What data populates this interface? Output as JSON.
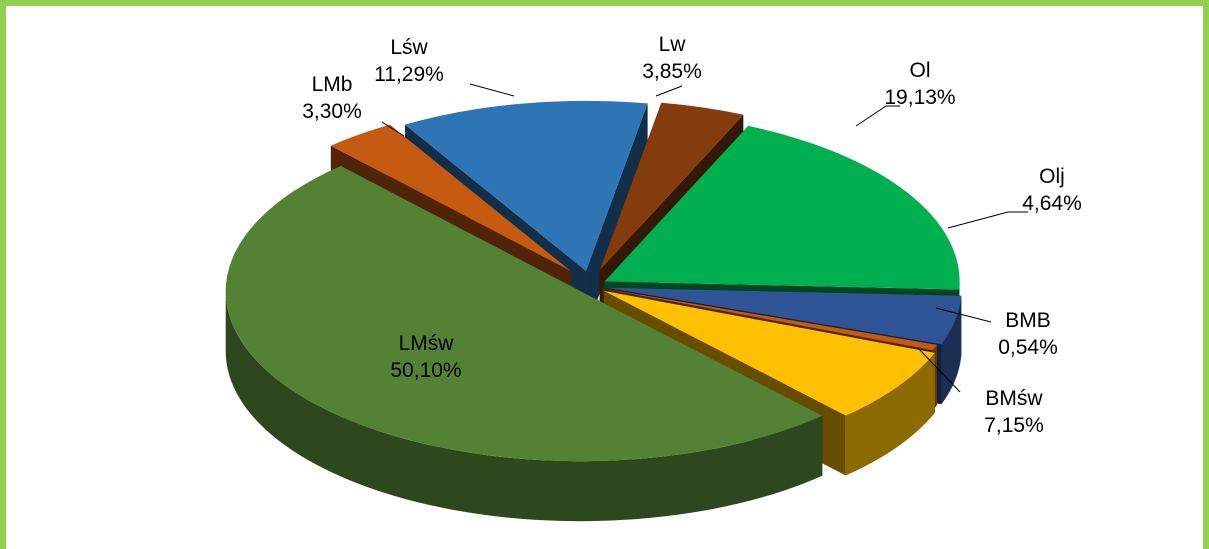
{
  "chart_data": {
    "type": "pie",
    "style": "3d-exploded",
    "title": "",
    "legend": "none",
    "slices": [
      {
        "name": "Lw",
        "label": "Lw",
        "percent_label": "3,85%",
        "value": 3.85,
        "color": "#843c0c"
      },
      {
        "name": "Ol",
        "label": "Ol",
        "percent_label": "19,13%",
        "value": 19.13,
        "color": "#00b050"
      },
      {
        "name": "Olj",
        "label": "Olj",
        "percent_label": "4,64%",
        "value": 4.64,
        "color": "#2f5597"
      },
      {
        "name": "BMB",
        "label": "BMB",
        "percent_label": "0,54%",
        "value": 0.54,
        "color": "#c55a11"
      },
      {
        "name": "BMśw",
        "label": "BMśw",
        "percent_label": "7,15%",
        "value": 7.15,
        "color": "#ffc000"
      },
      {
        "name": "LMśw",
        "label": "LMśw",
        "percent_label": "50,10%",
        "value": 50.1,
        "color": "#548235"
      },
      {
        "name": "LMb",
        "label": "LMb",
        "percent_label": "3,30%",
        "value": 3.3,
        "color": "#c55a11"
      },
      {
        "name": "Lśw",
        "label": "Lśw",
        "percent_label": "11,29%",
        "value": 11.29,
        "color": "#2e75b6"
      }
    ]
  }
}
